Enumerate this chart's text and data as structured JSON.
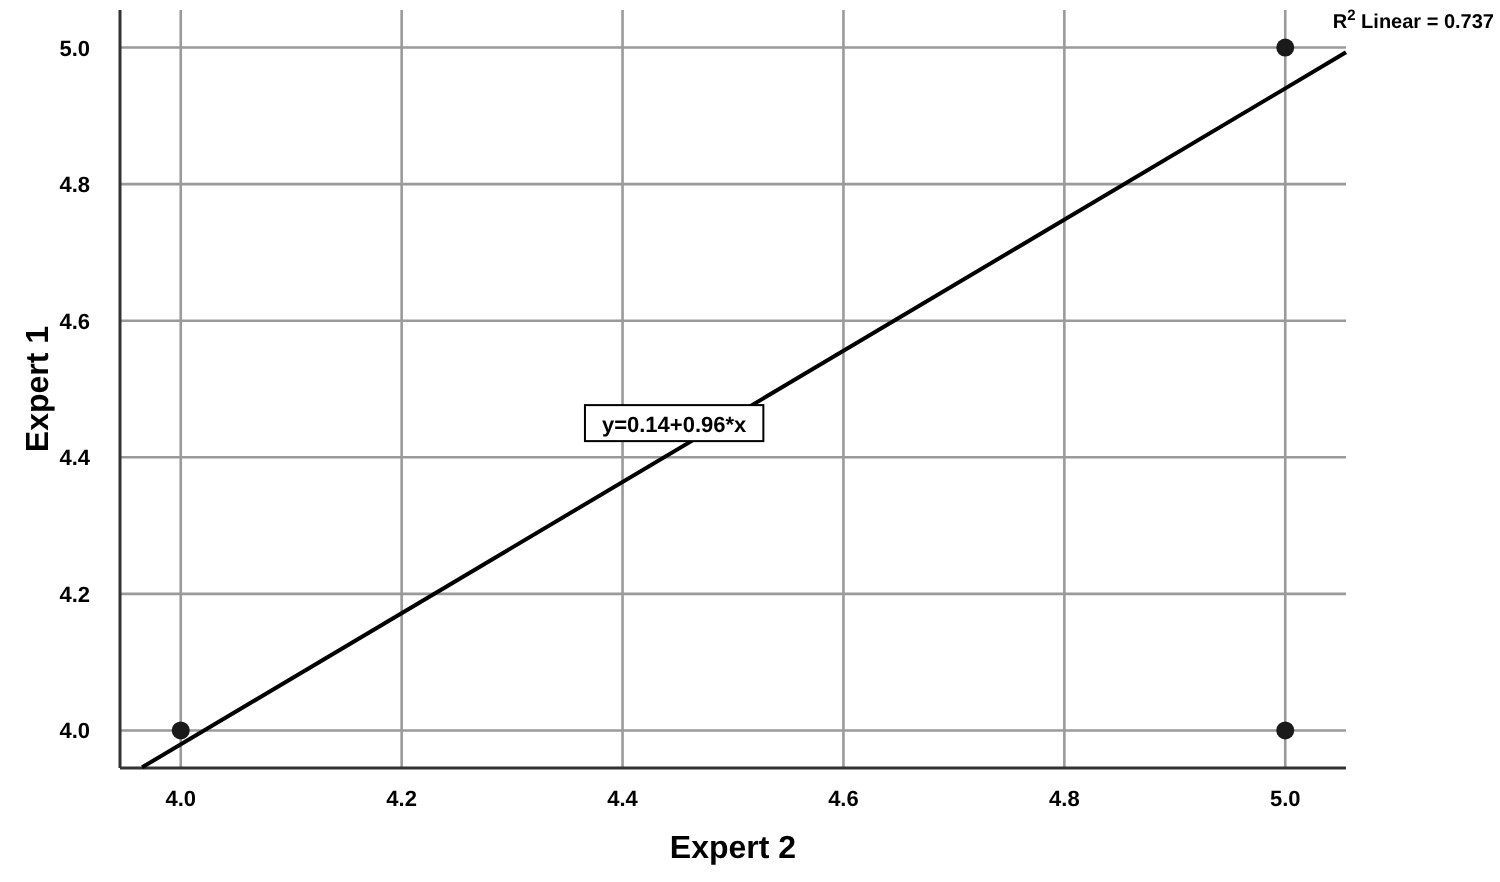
{
  "chart_data": {
    "type": "scatter",
    "xlabel": "Expert 2",
    "ylabel": "Expert 1",
    "xlim": [
      3.945,
      5.055
    ],
    "ylim": [
      3.945,
      5.055
    ],
    "xticks": [
      {
        "value": 4,
        "label": "4.0"
      },
      {
        "value": 4.2,
        "label": "4.2"
      },
      {
        "value": 4.4,
        "label": "4.4"
      },
      {
        "value": 4.6,
        "label": "4.6"
      },
      {
        "value": 4.8,
        "label": "4.8"
      },
      {
        "value": 5,
        "label": "5.0"
      }
    ],
    "yticks": [
      {
        "value": 4,
        "label": "4.0"
      },
      {
        "value": 4.2,
        "label": "4.2"
      },
      {
        "value": 4.4,
        "label": "4.4"
      },
      {
        "value": 4.6,
        "label": "4.6"
      },
      {
        "value": 4.8,
        "label": "4.8"
      },
      {
        "value": 5,
        "label": "5.0"
      }
    ],
    "grid": true,
    "series": [
      {
        "color": "#1a1a1a",
        "marker": "circle",
        "x": [
          4,
          5,
          5
        ],
        "values": [
          4,
          5,
          4
        ]
      },
      {
        "type": "line",
        "color": "#000000",
        "x": [
          3.965,
          5.055
        ],
        "values": [
          3.946,
          4.993
        ]
      }
    ],
    "annotations": [
      "R$^{2}$ Linear = 0.737",
      "y=0.14+0.96*x"
    ]
  }
}
